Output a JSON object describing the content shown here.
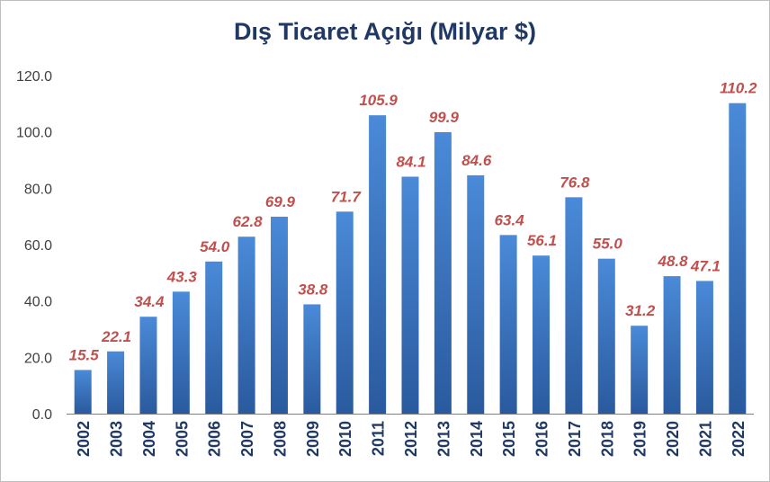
{
  "chart_data": {
    "type": "bar",
    "title": "Dış Ticaret Açığı (Milyar $)",
    "xlabel": "",
    "ylabel": "",
    "ylim": [
      0,
      120
    ],
    "yticks": [
      "0.0",
      "20.0",
      "40.0",
      "60.0",
      "80.0",
      "100.0",
      "120.0"
    ],
    "ytick_values": [
      0,
      20,
      40,
      60,
      80,
      100,
      120
    ],
    "categories": [
      "2002",
      "2003",
      "2004",
      "2005",
      "2006",
      "2007",
      "2008",
      "2009",
      "2010",
      "2011",
      "2012",
      "2013",
      "2014",
      "2015",
      "2016",
      "2017",
      "2018",
      "2019",
      "2020",
      "2021",
      "2022"
    ],
    "values": [
      15.5,
      22.1,
      34.4,
      43.3,
      54.0,
      62.8,
      69.9,
      38.8,
      71.7,
      105.9,
      84.1,
      99.9,
      84.6,
      63.4,
      56.1,
      76.8,
      55.0,
      31.2,
      48.8,
      47.1,
      110.2
    ],
    "data_labels": [
      "15.5",
      "22.1",
      "34.4",
      "43.3",
      "54.0",
      "62.8",
      "69.9",
      "38.8",
      "71.7",
      "105.9",
      "84.1",
      "99.9",
      "84.6",
      "63.4",
      "56.1",
      "76.8",
      "55.0",
      "31.2",
      "48.8",
      "47.1",
      "110.2"
    ],
    "grid": false,
    "legend": "none",
    "colors": {
      "bar_top": "#4a8ad8",
      "bar_bottom": "#2a5a9e",
      "title": "#1f3864",
      "data_label": "#c0504d",
      "axis": "#7f7f7f"
    }
  }
}
